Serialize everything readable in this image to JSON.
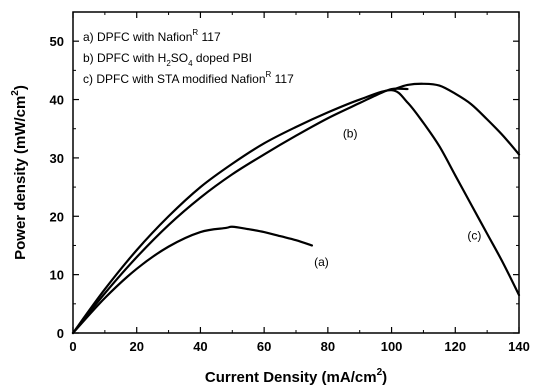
{
  "chart_data": {
    "type": "line",
    "xlabel": {
      "main": "Current Density (mA/cm",
      "sup": "2",
      "tail": ")"
    },
    "ylabel": {
      "main": "Power density (mW/cm",
      "sup": "2",
      "tail": ")"
    },
    "xlim": [
      0,
      140
    ],
    "ylim": [
      0,
      55
    ],
    "xticks": [
      0,
      20,
      40,
      60,
      80,
      100,
      120,
      140
    ],
    "yticks": [
      0,
      10,
      20,
      30,
      40,
      50
    ],
    "grid": false,
    "legend_position": "top-left",
    "legend_entries": [
      {
        "label": "a) DPFC with Nafion",
        "sup": "R",
        "suffix": " 117"
      },
      {
        "label": "b) DPFC with H",
        "sub1": "2",
        "mid": "SO",
        "sub2": "4",
        "suffix": " doped PBI"
      },
      {
        "label": "c) DPFC with STA modified Nafion",
        "sup": "R",
        "suffix": " 117"
      }
    ],
    "series": [
      {
        "label": "(a)",
        "label_position": [
          78,
          11.5
        ],
        "x": [
          0,
          10,
          20,
          30,
          40,
          48,
          50,
          55,
          60,
          65,
          70,
          75
        ],
        "y": [
          0,
          6.0,
          11.0,
          14.8,
          17.3,
          18.0,
          18.2,
          17.8,
          17.3,
          16.6,
          15.9,
          15.0
        ]
      },
      {
        "label": "(b)",
        "label_position": [
          87,
          33.5
        ],
        "x": [
          0,
          10,
          20,
          30,
          40,
          50,
          60,
          70,
          80,
          90,
          95,
          100,
          105
        ],
        "y": [
          0,
          6.8,
          13.0,
          18.5,
          23.2,
          27.2,
          30.6,
          33.8,
          36.8,
          39.4,
          40.7,
          41.8,
          41.8
        ]
      },
      {
        "label": "(c)",
        "label_position": [
          126,
          16
        ],
        "x": [
          0,
          10,
          20,
          30,
          40,
          50,
          60,
          70,
          80,
          90,
          100,
          105,
          110,
          115,
          120,
          125,
          130,
          135,
          140
        ],
        "y": [
          0,
          7.5,
          14.2,
          20.0,
          25.0,
          29.0,
          32.5,
          35.3,
          37.8,
          40.0,
          41.6,
          39.5,
          36.0,
          32.0,
          27.0,
          22.0,
          17.0,
          12.0,
          6.5
        ]
      },
      {
        "label": "",
        "x": [
          101,
          105,
          110,
          115,
          120,
          125,
          130,
          135,
          140
        ],
        "y": [
          41.8,
          42.5,
          42.7,
          42.4,
          41.0,
          39.2,
          36.6,
          33.8,
          30.6
        ]
      }
    ]
  },
  "colors": {
    "axis": "#000000",
    "line": "#000000",
    "background": "#ffffff"
  }
}
